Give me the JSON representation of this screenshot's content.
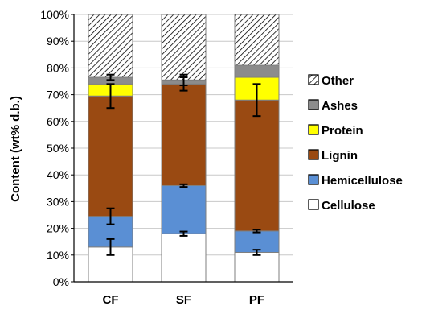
{
  "chart_data": {
    "type": "bar",
    "stacked": true,
    "categories": [
      "CF",
      "SF",
      "PF"
    ],
    "ylabel": "Content (wt% d.b.)",
    "ylim": [
      0,
      100
    ],
    "yticks": [
      "0%",
      "10%",
      "20%",
      "30%",
      "40%",
      "50%",
      "60%",
      "70%",
      "80%",
      "90%",
      "100%"
    ],
    "grid": true,
    "legend_position": "right",
    "series": [
      {
        "name": "Cellulose",
        "color": "#ffffff",
        "pattern": "none",
        "values": [
          13,
          18,
          11
        ],
        "errors": [
          3,
          0.8,
          1
        ]
      },
      {
        "name": "Hemicellulose",
        "color": "#5a8fd4",
        "pattern": "none",
        "values": [
          11.5,
          18,
          8
        ],
        "errors": [
          3,
          0.5,
          0.5
        ]
      },
      {
        "name": "Lignin",
        "color": "#9a4a12",
        "pattern": "none",
        "values": [
          45,
          38,
          49
        ],
        "errors": [
          4.5,
          2.5,
          6
        ]
      },
      {
        "name": "Protein",
        "color": "#ffff00",
        "pattern": "none",
        "values": [
          4.5,
          0,
          8.5
        ],
        "errors": [
          null,
          null,
          null
        ]
      },
      {
        "name": "Ashes",
        "color": "#8c8c8c",
        "pattern": "none",
        "values": [
          2.5,
          1.5,
          4.5
        ],
        "errors": [
          1,
          2,
          null
        ]
      },
      {
        "name": "Other",
        "color": "#ffffff",
        "pattern": "hatch",
        "values": [
          23.5,
          24.5,
          19
        ],
        "errors": [
          null,
          null,
          null
        ]
      }
    ],
    "legend_order": [
      "Other",
      "Ashes",
      "Protein",
      "Lignin",
      "Hemicellulose",
      "Cellulose"
    ]
  }
}
